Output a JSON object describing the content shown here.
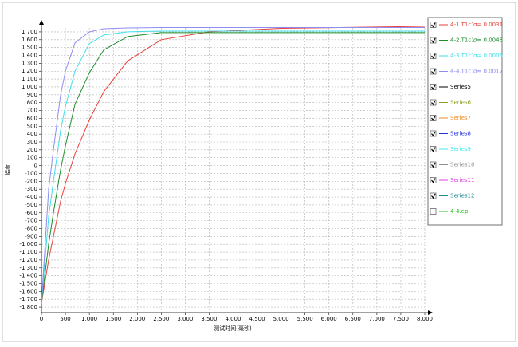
{
  "chart_data": {
    "type": "line",
    "x_label": "测试时间(毫秒)",
    "y_label": "幅度",
    "x": [
      0,
      150,
      250,
      400,
      500,
      700,
      1000,
      1300,
      1800,
      2500,
      3500,
      5000,
      8000
    ],
    "series": [
      {
        "name": "4-1.T1c1",
        "sigma": "σ= 0.0031",
        "color": "#e8403a",
        "checked": true,
        "values": [
          -1750,
          -1200,
          -900,
          -450,
          -230,
          150,
          580,
          940,
          1330,
          1600,
          1700,
          1745,
          1770
        ]
      },
      {
        "name": "4-2.T1c1",
        "sigma": "σ= 0.0045",
        "color": "#1a8c2a",
        "checked": true,
        "values": [
          -1750,
          -1000,
          -600,
          -50,
          250,
          780,
          1180,
          1470,
          1640,
          1690,
          1690,
          1690,
          1690
        ]
      },
      {
        "name": "4-3.T1c1",
        "sigma": "σ= 0.0006",
        "color": "#3fe0e8",
        "checked": true,
        "values": [
          -1750,
          -650,
          -200,
          450,
          750,
          1200,
          1550,
          1660,
          1700,
          1710,
          1710,
          1710,
          1710
        ]
      },
      {
        "name": "4-4.T1c1",
        "sigma": "σ= 0.0017",
        "color": "#8f8cf0",
        "checked": true,
        "values": [
          -1750,
          -300,
          200,
          900,
          1200,
          1560,
          1700,
          1740,
          1750,
          1755,
          1755,
          1755,
          1755
        ]
      },
      {
        "name": "Series5",
        "color": "#000000",
        "checked": true
      },
      {
        "name": "Series6",
        "color": "#8aa020",
        "checked": true
      },
      {
        "name": "Series7",
        "color": "#f08a20",
        "checked": true
      },
      {
        "name": "Series8",
        "color": "#2030e0",
        "checked": true
      },
      {
        "name": "Series9",
        "color": "#40e8f0",
        "checked": true
      },
      {
        "name": "Series10",
        "color": "#909090",
        "checked": true
      },
      {
        "name": "Series11",
        "color": "#e040e0",
        "checked": true
      },
      {
        "name": "Series12",
        "color": "#208890",
        "checked": true
      },
      {
        "name": "4-4.ep",
        "color": "#20c020",
        "checked": false
      }
    ],
    "xlim": [
      0,
      8000
    ],
    "ylim": [
      -1870,
      1750
    ],
    "grid": true,
    "xticks": [
      0,
      500,
      {
        "value": 1000,
        "label": "1,000"
      },
      {
        "value": 1500,
        "label": "1,500"
      },
      {
        "value": 2000,
        "label": "2,000"
      },
      {
        "value": 2500,
        "label": "2,500"
      },
      {
        "value": 3000,
        "label": "3,000"
      },
      {
        "value": 3500,
        "label": "3,500"
      },
      {
        "value": 4000,
        "label": "4,000"
      },
      {
        "value": 4500,
        "label": "4,500"
      },
      {
        "value": 5000,
        "label": "5,000"
      },
      {
        "value": 5500,
        "label": "5,500"
      },
      {
        "value": 6000,
        "label": "6,000"
      },
      {
        "value": 6500,
        "label": "6,500"
      },
      {
        "value": 7000,
        "label": "7,000"
      },
      {
        "value": 7500,
        "label": "7,500"
      },
      {
        "value": 8000,
        "label": "8,000"
      }
    ],
    "yticks": [
      {
        "value": -1800,
        "label": "-1,800"
      },
      {
        "value": -1700,
        "label": "-1,700"
      },
      {
        "value": -1600,
        "label": "-1,600"
      },
      {
        "value": -1500,
        "label": "-1,500"
      },
      {
        "value": -1400,
        "label": "-1,400"
      },
      {
        "value": -1300,
        "label": "-1,300"
      },
      {
        "value": -1200,
        "label": "-1,200"
      },
      {
        "value": -1100,
        "label": "-1,100"
      },
      {
        "value": -1000,
        "label": "-1,000"
      },
      -900,
      -800,
      -700,
      -600,
      -500,
      -400,
      -300,
      -200,
      -100,
      0,
      100,
      200,
      300,
      400,
      500,
      600,
      700,
      800,
      900,
      {
        "value": 1000,
        "label": "1,000"
      },
      {
        "value": 1100,
        "label": "1,100"
      },
      {
        "value": 1200,
        "label": "1,200"
      },
      {
        "value": 1300,
        "label": "1,300"
      },
      {
        "value": 1400,
        "label": "1,400"
      },
      {
        "value": 1500,
        "label": "1,500"
      },
      {
        "value": 1600,
        "label": "1,600"
      },
      {
        "value": 1700,
        "label": "1,700"
      }
    ]
  }
}
